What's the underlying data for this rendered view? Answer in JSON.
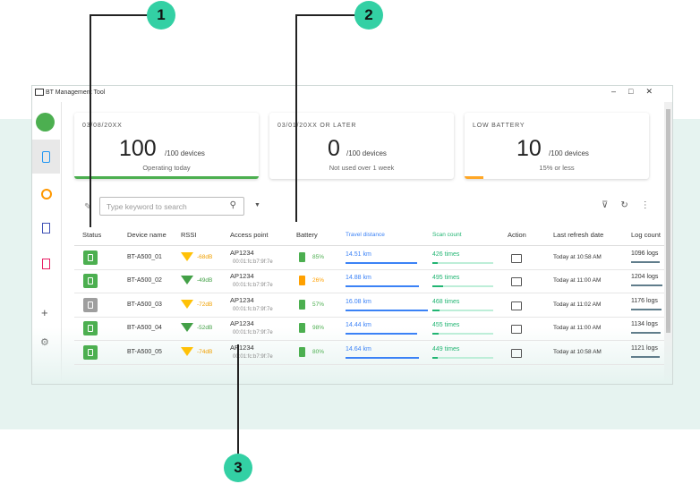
{
  "callouts": [
    "1",
    "2",
    "3"
  ],
  "window": {
    "title": "BT Management Tool"
  },
  "cards": [
    {
      "label": "03/08/20XX",
      "count": "100",
      "unit": "/100 devices",
      "caption": "Operating today"
    },
    {
      "label": "03/01/20XX OR LATER",
      "count": "0",
      "unit": "/100 devices",
      "caption": "Not used over 1 week"
    },
    {
      "label": "LOW BATTERY",
      "count": "10",
      "unit": "/100 devices",
      "caption": "15% or less"
    }
  ],
  "search": {
    "placeholder": "Type keyword to search"
  },
  "table": {
    "headers": [
      "Status",
      "Device name",
      "RSSI",
      "Access point",
      "Battery",
      "Travel distance",
      "Scan count",
      "Action",
      "Last refresh date",
      "Log count"
    ],
    "rows": [
      [
        "BT-A500_01",
        "-68dB",
        "AP1234",
        "00:01:fc:b7:9f:7e",
        "85%",
        "14.51 km",
        "426 times",
        "Today at 10:58 AM",
        "1096 logs"
      ],
      [
        "BT-A500_02",
        "-49dB",
        "AP1234",
        "00:01:fc:b7:9f:7e",
        "26%",
        "14.88 km",
        "495 times",
        "Today at 11:00 AM",
        "1204 logs"
      ],
      [
        "BT-A500_03",
        "-72dB",
        "AP1234",
        "00:01:fc:b7:9f:7e",
        "57%",
        "16.08 km",
        "468 times",
        "Today at 11:02 AM",
        "1176 logs"
      ],
      [
        "BT-A500_04",
        "-52dB",
        "AP1234",
        "00:01:fc:b7:9f:7e",
        "98%",
        "14.44 km",
        "455 times",
        "Today at 11:00 AM",
        "1134 logs"
      ],
      [
        "BT-A500_05",
        "-74dB",
        "AP1234",
        "00:01:fc:b7:9f:7e",
        "80%",
        "14.64 km",
        "449 times",
        "Today at 10:58 AM",
        "1121 logs"
      ]
    ]
  }
}
